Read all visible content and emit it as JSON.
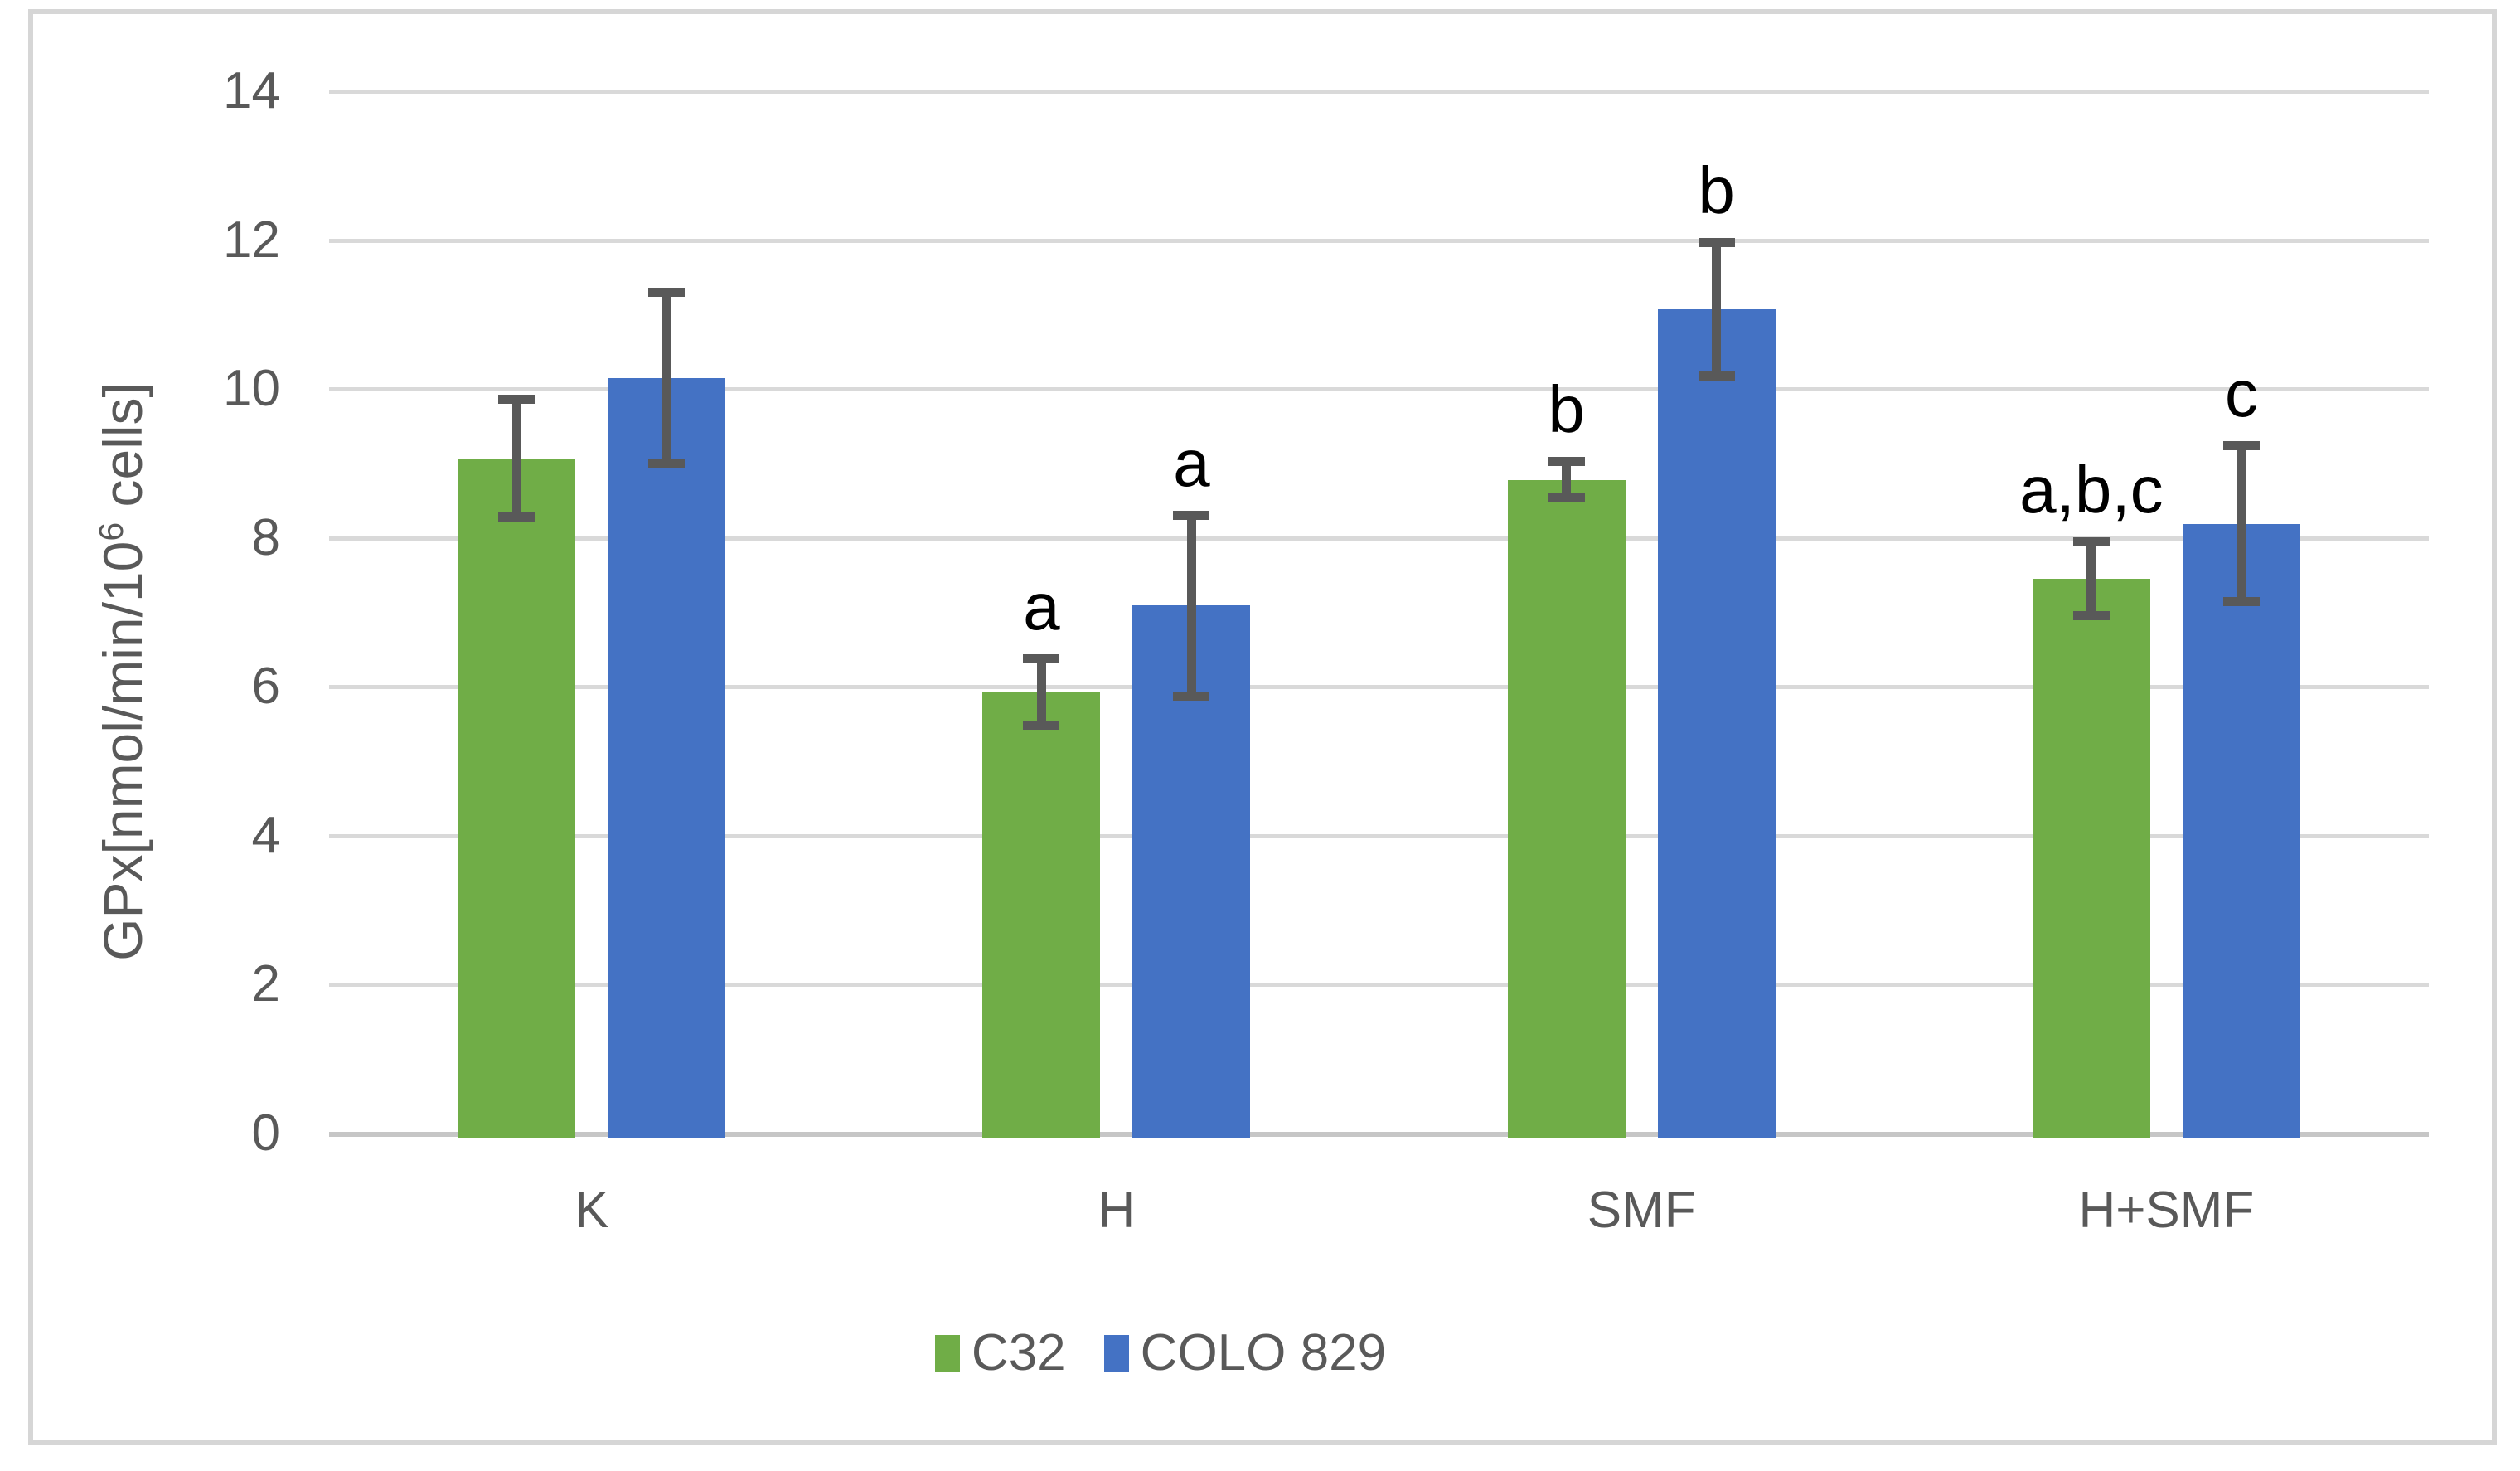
{
  "chart_data": {
    "type": "bar",
    "title": "",
    "ylabel": "GPx[nmol/min/10⁶ cells]",
    "ylabel_parts": {
      "prefix": "GPx[nmol/min/10",
      "sup": "6",
      "suffix": " cells]"
    },
    "xlabel": "",
    "categories": [
      "K",
      "H",
      "SMF",
      "H+SMF"
    ],
    "series": [
      {
        "name": "C32",
        "color": "#70AD47",
        "values": [
          9.07,
          5.93,
          8.78,
          7.45
        ],
        "errors": [
          0.8,
          0.45,
          0.25,
          0.5
        ],
        "annotations": [
          "",
          "a",
          "b",
          "a,b,c"
        ]
      },
      {
        "name": "COLO 829",
        "color": "#4472C4",
        "values": [
          10.15,
          7.09,
          11.07,
          8.19
        ],
        "errors": [
          1.15,
          1.22,
          0.9,
          1.05
        ],
        "annotations": [
          "",
          "a",
          "b",
          "c"
        ]
      }
    ],
    "ylim": [
      0,
      14
    ],
    "ytick_step": 2,
    "yticks": [
      "0",
      "2",
      "4",
      "6",
      "8",
      "10",
      "12",
      "14"
    ],
    "grid": true,
    "legend_position": "bottom-center",
    "error_bar_color": "#595959",
    "gridline_color": "#D9D9D9",
    "axis_text_color": "#595959",
    "annotation_color": "#000000"
  },
  "legend": {
    "items": [
      {
        "label": "C32",
        "color": "#70AD47"
      },
      {
        "label": "COLO 829",
        "color": "#4472C4"
      }
    ]
  }
}
